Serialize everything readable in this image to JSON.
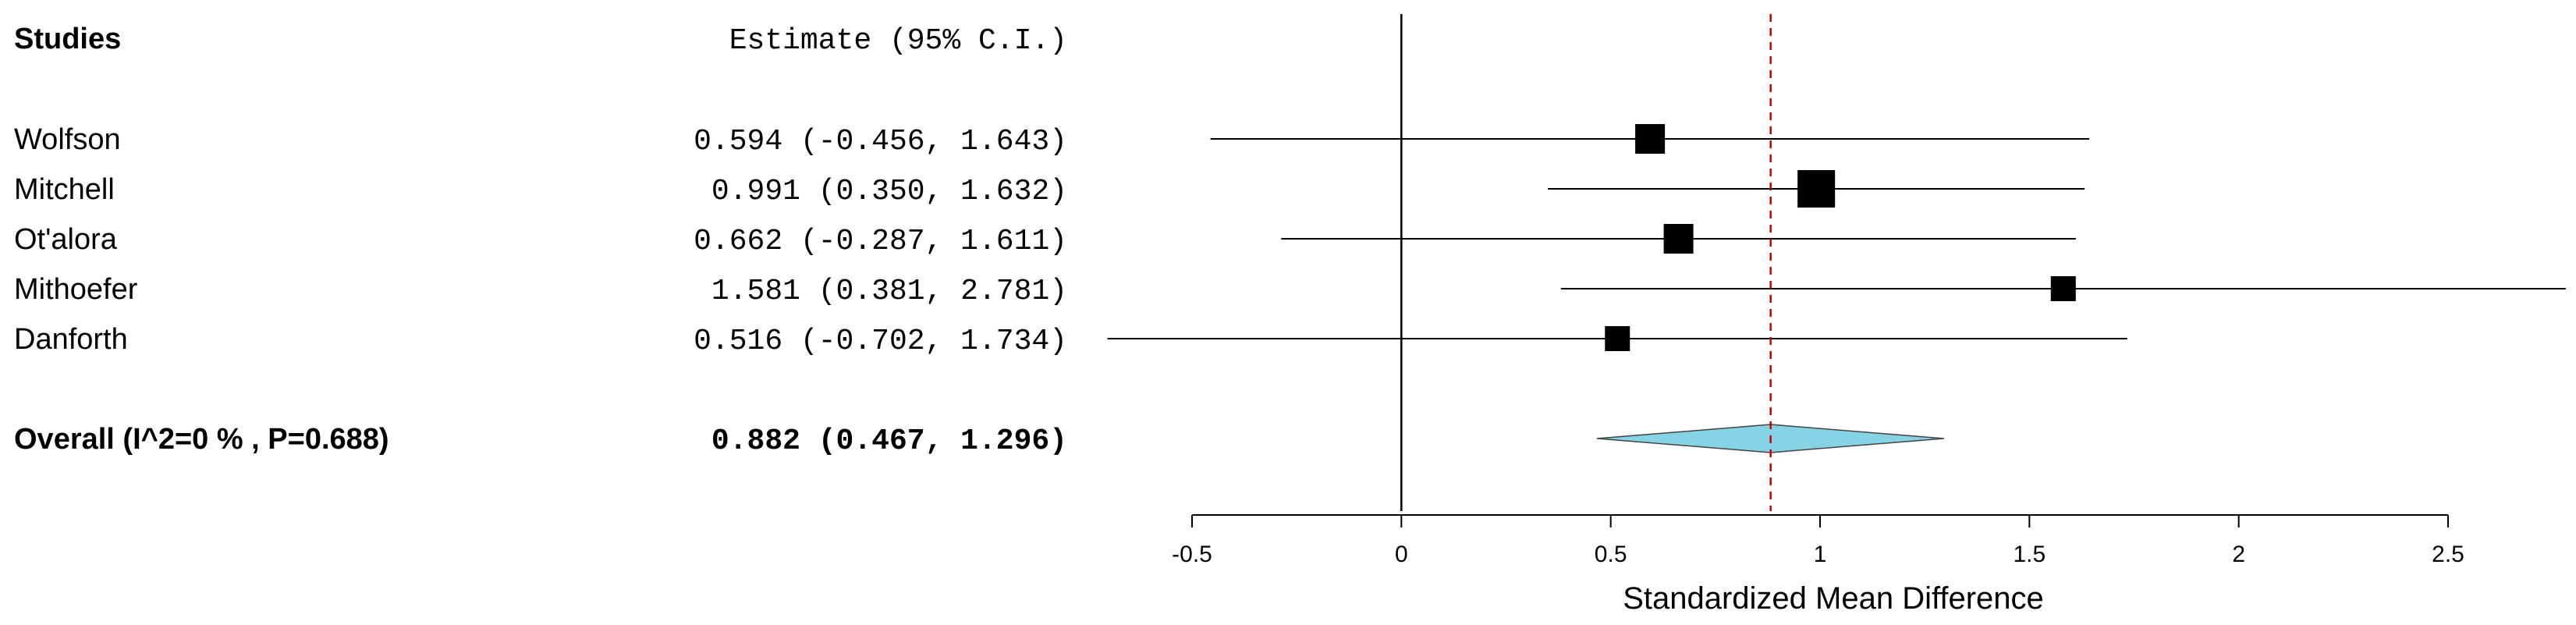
{
  "chart_data": {
    "type": "forest",
    "columns": {
      "studies_header": "Studies",
      "estimate_header": "Estimate (95% C.I.)"
    },
    "studies": [
      {
        "name": "Wolfson",
        "estimate": 0.594,
        "lower": -0.456,
        "upper": 1.643,
        "label": "0.594 (-0.456, 1.643)",
        "weight_rank": 2
      },
      {
        "name": "Mitchell",
        "estimate": 0.991,
        "lower": 0.35,
        "upper": 1.632,
        "label": "0.991  (0.350, 1.632)",
        "weight_rank": 1
      },
      {
        "name": "Ot'alora",
        "estimate": 0.662,
        "lower": -0.287,
        "upper": 1.611,
        "label": "0.662 (-0.287, 1.611)",
        "weight_rank": 2
      },
      {
        "name": "Mithoefer",
        "estimate": 1.581,
        "lower": 0.381,
        "upper": 2.781,
        "label": "1.581  (0.381, 2.781)",
        "weight_rank": 3
      },
      {
        "name": "Danforth",
        "estimate": 0.516,
        "lower": -0.702,
        "upper": 1.734,
        "label": "0.516 (-0.702, 1.734)",
        "weight_rank": 3
      }
    ],
    "overall": {
      "name": "Overall (I^2=0 % , P=0.688)",
      "estimate": 0.882,
      "lower": 0.467,
      "upper": 1.296,
      "label": "0.882  (0.467, 1.296)"
    },
    "xlabel": "Standardized Mean Difference",
    "xlim": [
      -0.5,
      2.5
    ],
    "xticks": [
      -0.5,
      0,
      0.5,
      1,
      1.5,
      2,
      2.5
    ],
    "xtick_labels": [
      "-0.5",
      "0",
      "0.5",
      "1",
      "1.5",
      "2",
      "2.5"
    ],
    "null_line": 0,
    "reference_line": 0.882,
    "colors": {
      "marker": "#000000",
      "diamond_fill": "#87d3e6",
      "reference_line": "#cc0000"
    }
  }
}
